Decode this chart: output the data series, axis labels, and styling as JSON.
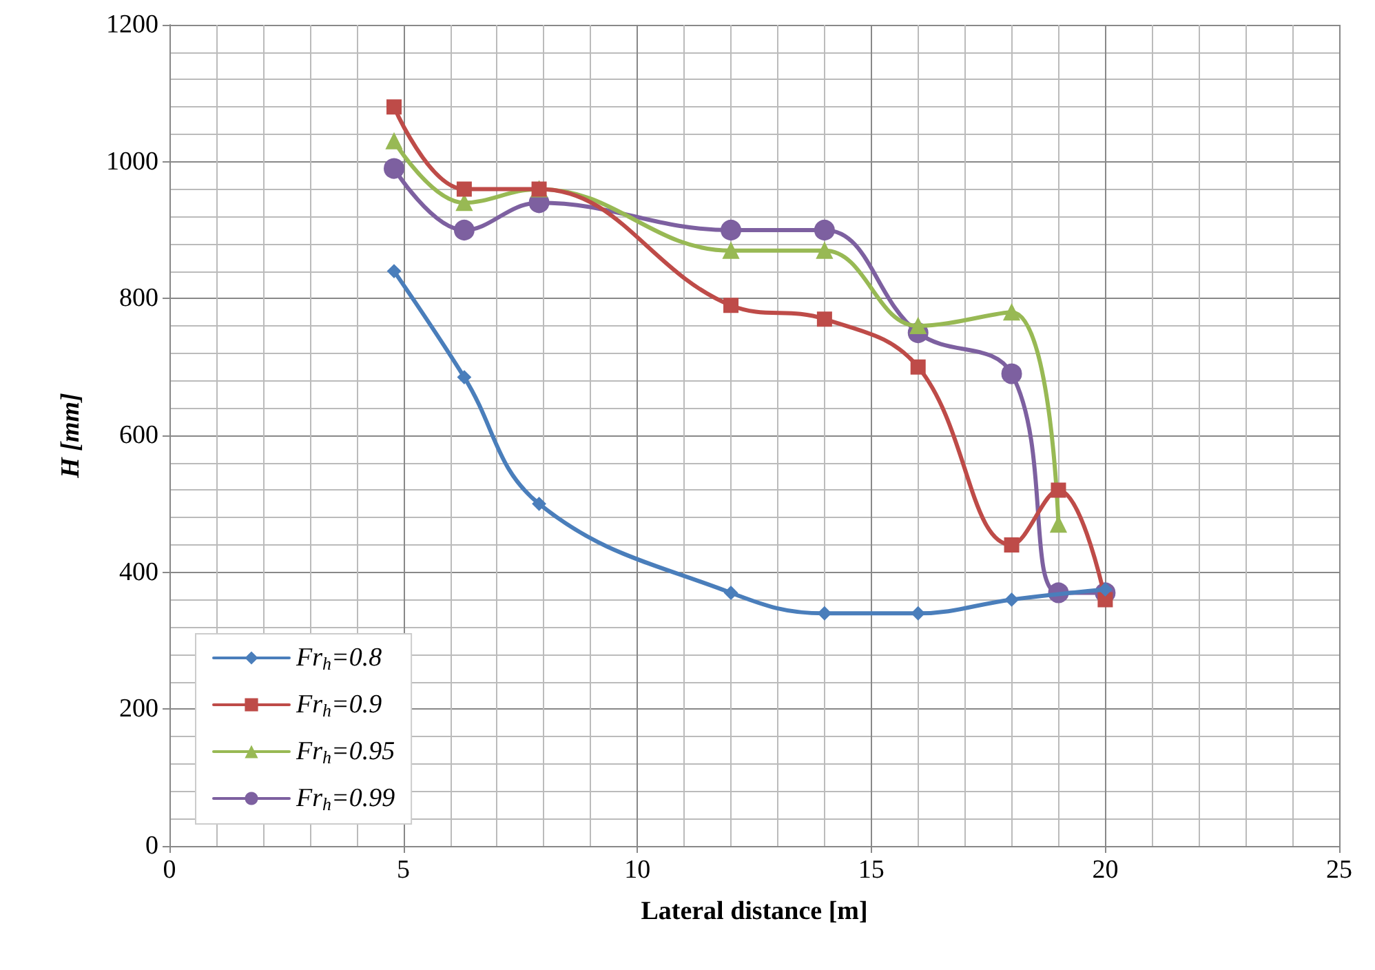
{
  "chart_data": {
    "type": "line",
    "xlabel": "Lateral distance [m]",
    "ylabel": "H [mm]",
    "xlim": [
      0,
      25
    ],
    "xticks": [
      0,
      5,
      10,
      15,
      20,
      25
    ],
    "ylim": [
      0,
      1200
    ],
    "yticks": [
      0,
      200,
      400,
      600,
      800,
      1000,
      1200
    ],
    "grid": true,
    "legend": "bottom left",
    "line_style": "solid",
    "series": [
      {
        "name": "Fr$_{h}$=0.8",
        "color": "#4a7ebb",
        "marker": "diamond",
        "x": [
          4.8,
          6.3,
          7.9,
          12,
          14,
          16,
          18,
          20
        ],
        "values": [
          840,
          685,
          500,
          370,
          340,
          340,
          360,
          375
        ]
      },
      {
        "name": "Fr$_{h}$=0.9",
        "color": "#be4b48",
        "marker": "square",
        "x": [
          4.8,
          6.3,
          7.9,
          12,
          14,
          16,
          18,
          19,
          20
        ],
        "values": [
          1080,
          960,
          960,
          790,
          770,
          700,
          440,
          520,
          360
        ]
      },
      {
        "name": "Fr$_{h}$=0.95",
        "color": "#98b954",
        "marker": "triangle",
        "x": [
          4.8,
          6.3,
          7.9,
          12,
          14,
          16,
          18,
          19
        ],
        "values": [
          1030,
          940,
          960,
          870,
          870,
          760,
          780,
          470
        ]
      },
      {
        "name": "Fr$_{h}$=0.99",
        "color": "#7d60a0",
        "marker": "circle",
        "x": [
          4.8,
          6.3,
          7.9,
          12,
          14,
          16,
          18,
          19,
          20
        ],
        "values": [
          990,
          900,
          940,
          900,
          900,
          750,
          690,
          370,
          370
        ]
      }
    ]
  }
}
